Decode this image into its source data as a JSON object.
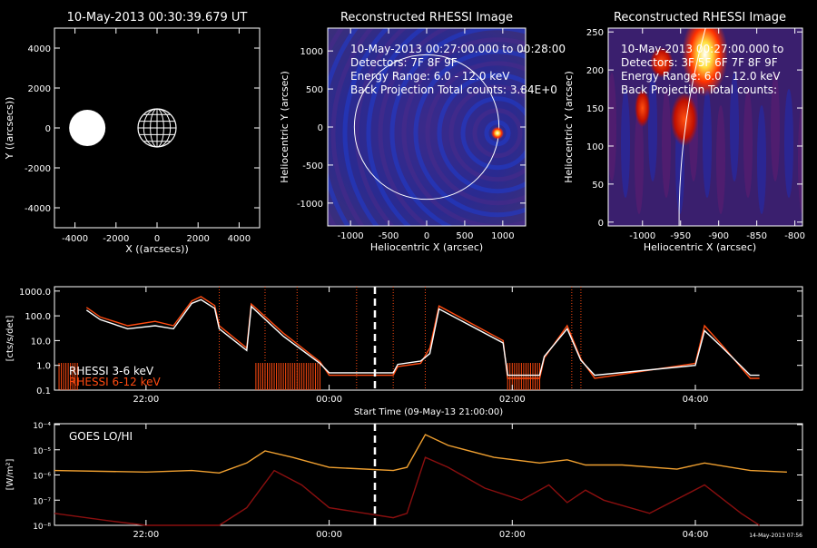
{
  "colors": {
    "white": "#ffffff",
    "rhessi_high": "#ff4a10",
    "goes_lo": "#f0a030",
    "goes_hi": "#8a0f0f",
    "bg": "#000000"
  },
  "panel_orbit": {
    "title": "10-May-2013 00:30:39.679 UT",
    "xlabel": "X ((arcsecs))",
    "ylabel": "Y ((arcsecs))",
    "xticks": [
      "-4000",
      "-2000",
      "0",
      "2000",
      "4000"
    ],
    "yticks": [
      "4000",
      "2000",
      "0",
      "-2000",
      "-4000"
    ]
  },
  "panel_image_full": {
    "title": "Reconstructed RHESSI Image",
    "xlabel": "Heliocentric X (arcsec)",
    "ylabel": "Heliocentric Y (arcsec)",
    "xticks": [
      "-1000",
      "-500",
      "0",
      "500",
      "1000"
    ],
    "yticks": [
      "1000",
      "500",
      "0",
      "-500",
      "-1000"
    ],
    "info": [
      "10-May-2013 00:27:00.000 to 00:28:00",
      "Detectors: 7F 8F 9F",
      "Energy Range: 6.0 - 12.0 keV",
      "Back Projection    Total counts: 3.84E+0"
    ]
  },
  "panel_image_zoom": {
    "title": "Reconstructed RHESSI Image",
    "xlabel": "Heliocentric X (arcsec)",
    "ylabel": "Heliocentric Y (arcsec)",
    "xticks": [
      "-1000",
      "-950",
      "-900",
      "-850",
      "-800"
    ],
    "yticks": [
      "250",
      "200",
      "150",
      "100",
      "50",
      "0"
    ],
    "info": [
      "10-May-2013 00:27:00.000 to",
      "Detectors: 3F 5F 6F 7F 8F 9F",
      "Energy Range: 6.0 - 12.0 keV",
      "Back Projection    Total counts:"
    ]
  },
  "panel_rhessi": {
    "ylabel": "[cts/s/det]",
    "yticks": [
      "1000.0",
      "100.0",
      "10.0",
      "1.0",
      "0.1"
    ],
    "xticks": [
      "22:00",
      "00:00",
      "02:00",
      "04:00"
    ],
    "xlabel": "Start Time (09-May-13 21:00:00)",
    "legend": [
      "RHESSI  3-6 keV",
      "RHESSI  6-12 keV"
    ]
  },
  "panel_goes": {
    "label": "GOES LO/HI",
    "ylabel": "[W/m²]",
    "yticks": [
      "10⁻⁴",
      "10⁻⁵",
      "10⁻⁶",
      "10⁻⁷",
      "10⁻⁸"
    ],
    "xticks": [
      "22:00",
      "00:00",
      "02:00",
      "04:00"
    ],
    "stamp": "14-May-2013 07:56"
  },
  "chart_data": [
    {
      "type": "scatter",
      "title": "10-May-2013 00:30:39.679 UT",
      "xlabel": "X ((arcsecs))",
      "ylabel": "Y ((arcsecs))",
      "xlim": [
        -5000,
        5000
      ],
      "ylim": [
        -5000,
        5000
      ],
      "series": [
        {
          "name": "",
          "x": [
            -3400
          ],
          "y": [
            0
          ],
          "marker": "filled-disk"
        },
        {
          "name": "",
          "x": [
            0
          ],
          "y": [
            0
          ],
          "marker": "grid-globe"
        }
      ]
    },
    {
      "type": "heatmap",
      "title": "Reconstructed RHESSI Image",
      "xlabel": "Heliocentric X (arcsec)",
      "ylabel": "Heliocentric Y (arcsec)",
      "xlim": [
        -1300,
        1300
      ],
      "ylim": [
        -1300,
        1300
      ],
      "source": {
        "x": 930,
        "y": -80
      },
      "limb_radius": 950
    },
    {
      "type": "heatmap",
      "title": "Reconstructed RHESSI Image",
      "xlabel": "Heliocentric X (arcsec)",
      "ylabel": "Heliocentric Y (arcsec)",
      "xlim": [
        -1045,
        -790
      ],
      "ylim": [
        -5,
        255
      ],
      "sources": [
        {
          "x": -918,
          "y": 220,
          "w": 30,
          "h": 55
        },
        {
          "x": -945,
          "y": 135,
          "w": 18,
          "h": 35
        },
        {
          "x": -1000,
          "y": 150,
          "w": 10,
          "h": 25
        },
        {
          "x": -975,
          "y": 210,
          "w": 15,
          "h": 20
        }
      ]
    },
    {
      "type": "line",
      "title": "",
      "xlabel": "Start Time (09-May-13 21:00:00)",
      "ylabel": "[cts/s/det]",
      "x_hours_ticks": [
        "22:00",
        "00:00",
        "02:00",
        "04:00"
      ],
      "ylim": [
        0.1,
        1000
      ],
      "yscale": "log",
      "marker_time": "00:30",
      "series": [
        {
          "name": "RHESSI  3-6 keV",
          "t": [
            21.35,
            21.5,
            21.8,
            22.1,
            22.3,
            22.5,
            22.6,
            22.75,
            22.8,
            23.1,
            23.15,
            23.5,
            23.9,
            24.0,
            24.7,
            24.75,
            25.0,
            25.1,
            25.2,
            25.9,
            25.95,
            26.3,
            26.35,
            26.6,
            26.75,
            26.9,
            28.0,
            28.1,
            28.3,
            28.6,
            28.7
          ],
          "v": [
            170,
            70,
            30,
            40,
            30,
            320,
            450,
            200,
            30,
            4,
            240,
            15,
            1.2,
            0.5,
            0.5,
            1.1,
            1.5,
            3,
            190,
            8,
            0.4,
            0.4,
            2.3,
            30,
            1.6,
            0.4,
            1.0,
            25,
            5,
            0.4,
            0.4
          ]
        },
        {
          "name": "RHESSI  6-12 keV",
          "t": [
            21.35,
            21.5,
            21.8,
            22.1,
            22.3,
            22.5,
            22.6,
            22.75,
            22.8,
            23.1,
            23.15,
            23.5,
            23.9,
            24.0,
            24.7,
            24.75,
            25.0,
            25.1,
            25.2,
            25.9,
            25.95,
            26.3,
            26.35,
            26.6,
            26.75,
            26.9,
            28.0,
            28.1,
            28.3,
            28.6,
            28.7
          ],
          "v": [
            220,
            90,
            40,
            60,
            40,
            400,
            600,
            260,
            40,
            5,
            300,
            20,
            1.4,
            0.4,
            0.4,
            0.9,
            1.2,
            5,
            250,
            10,
            0.3,
            0.3,
            2.0,
            40,
            1.8,
            0.3,
            1.2,
            40,
            6,
            0.3,
            0.3
          ]
        }
      ]
    },
    {
      "type": "line",
      "title": "",
      "ylabel": "[W/m²]",
      "x_hours_ticks": [
        "22:00",
        "00:00",
        "02:00",
        "04:00"
      ],
      "ylim": [
        1e-08,
        0.0001
      ],
      "yscale": "log",
      "marker_time": "00:30",
      "series": [
        {
          "name": "GOES LO",
          "t": [
            21.0,
            22.0,
            22.5,
            22.8,
            23.1,
            23.3,
            23.6,
            24.0,
            24.7,
            24.85,
            25.05,
            25.3,
            25.8,
            26.3,
            26.6,
            26.8,
            27.2,
            27.8,
            28.1,
            28.6,
            29.0
          ],
          "v": [
            1.5e-06,
            1.3e-06,
            1.5e-06,
            1.2e-06,
            3e-06,
            9e-06,
            5e-06,
            2e-06,
            1.5e-06,
            2e-06,
            4e-05,
            1.5e-05,
            5e-06,
            3e-06,
            4e-06,
            2.5e-06,
            2.5e-06,
            1.7e-06,
            3e-06,
            1.5e-06,
            1.3e-06
          ]
        },
        {
          "name": "GOES HI",
          "t": [
            21.0,
            21.6,
            22.0,
            22.5,
            22.8,
            23.1,
            23.4,
            23.7,
            24.0,
            24.7,
            24.85,
            25.05,
            25.3,
            25.7,
            26.1,
            26.4,
            26.6,
            26.8,
            27.0,
            27.5,
            28.1,
            28.5,
            28.7
          ],
          "v": [
            3e-08,
            1.5e-08,
            1e-08,
            1e-08,
            1e-08,
            5e-08,
            1.5e-06,
            4e-07,
            5e-08,
            2e-08,
            3e-08,
            5e-06,
            2e-06,
            3e-07,
            1e-07,
            4e-07,
            8e-08,
            2.5e-07,
            1e-07,
            3e-08,
            4e-07,
            3e-08,
            1e-08
          ]
        }
      ]
    }
  ]
}
